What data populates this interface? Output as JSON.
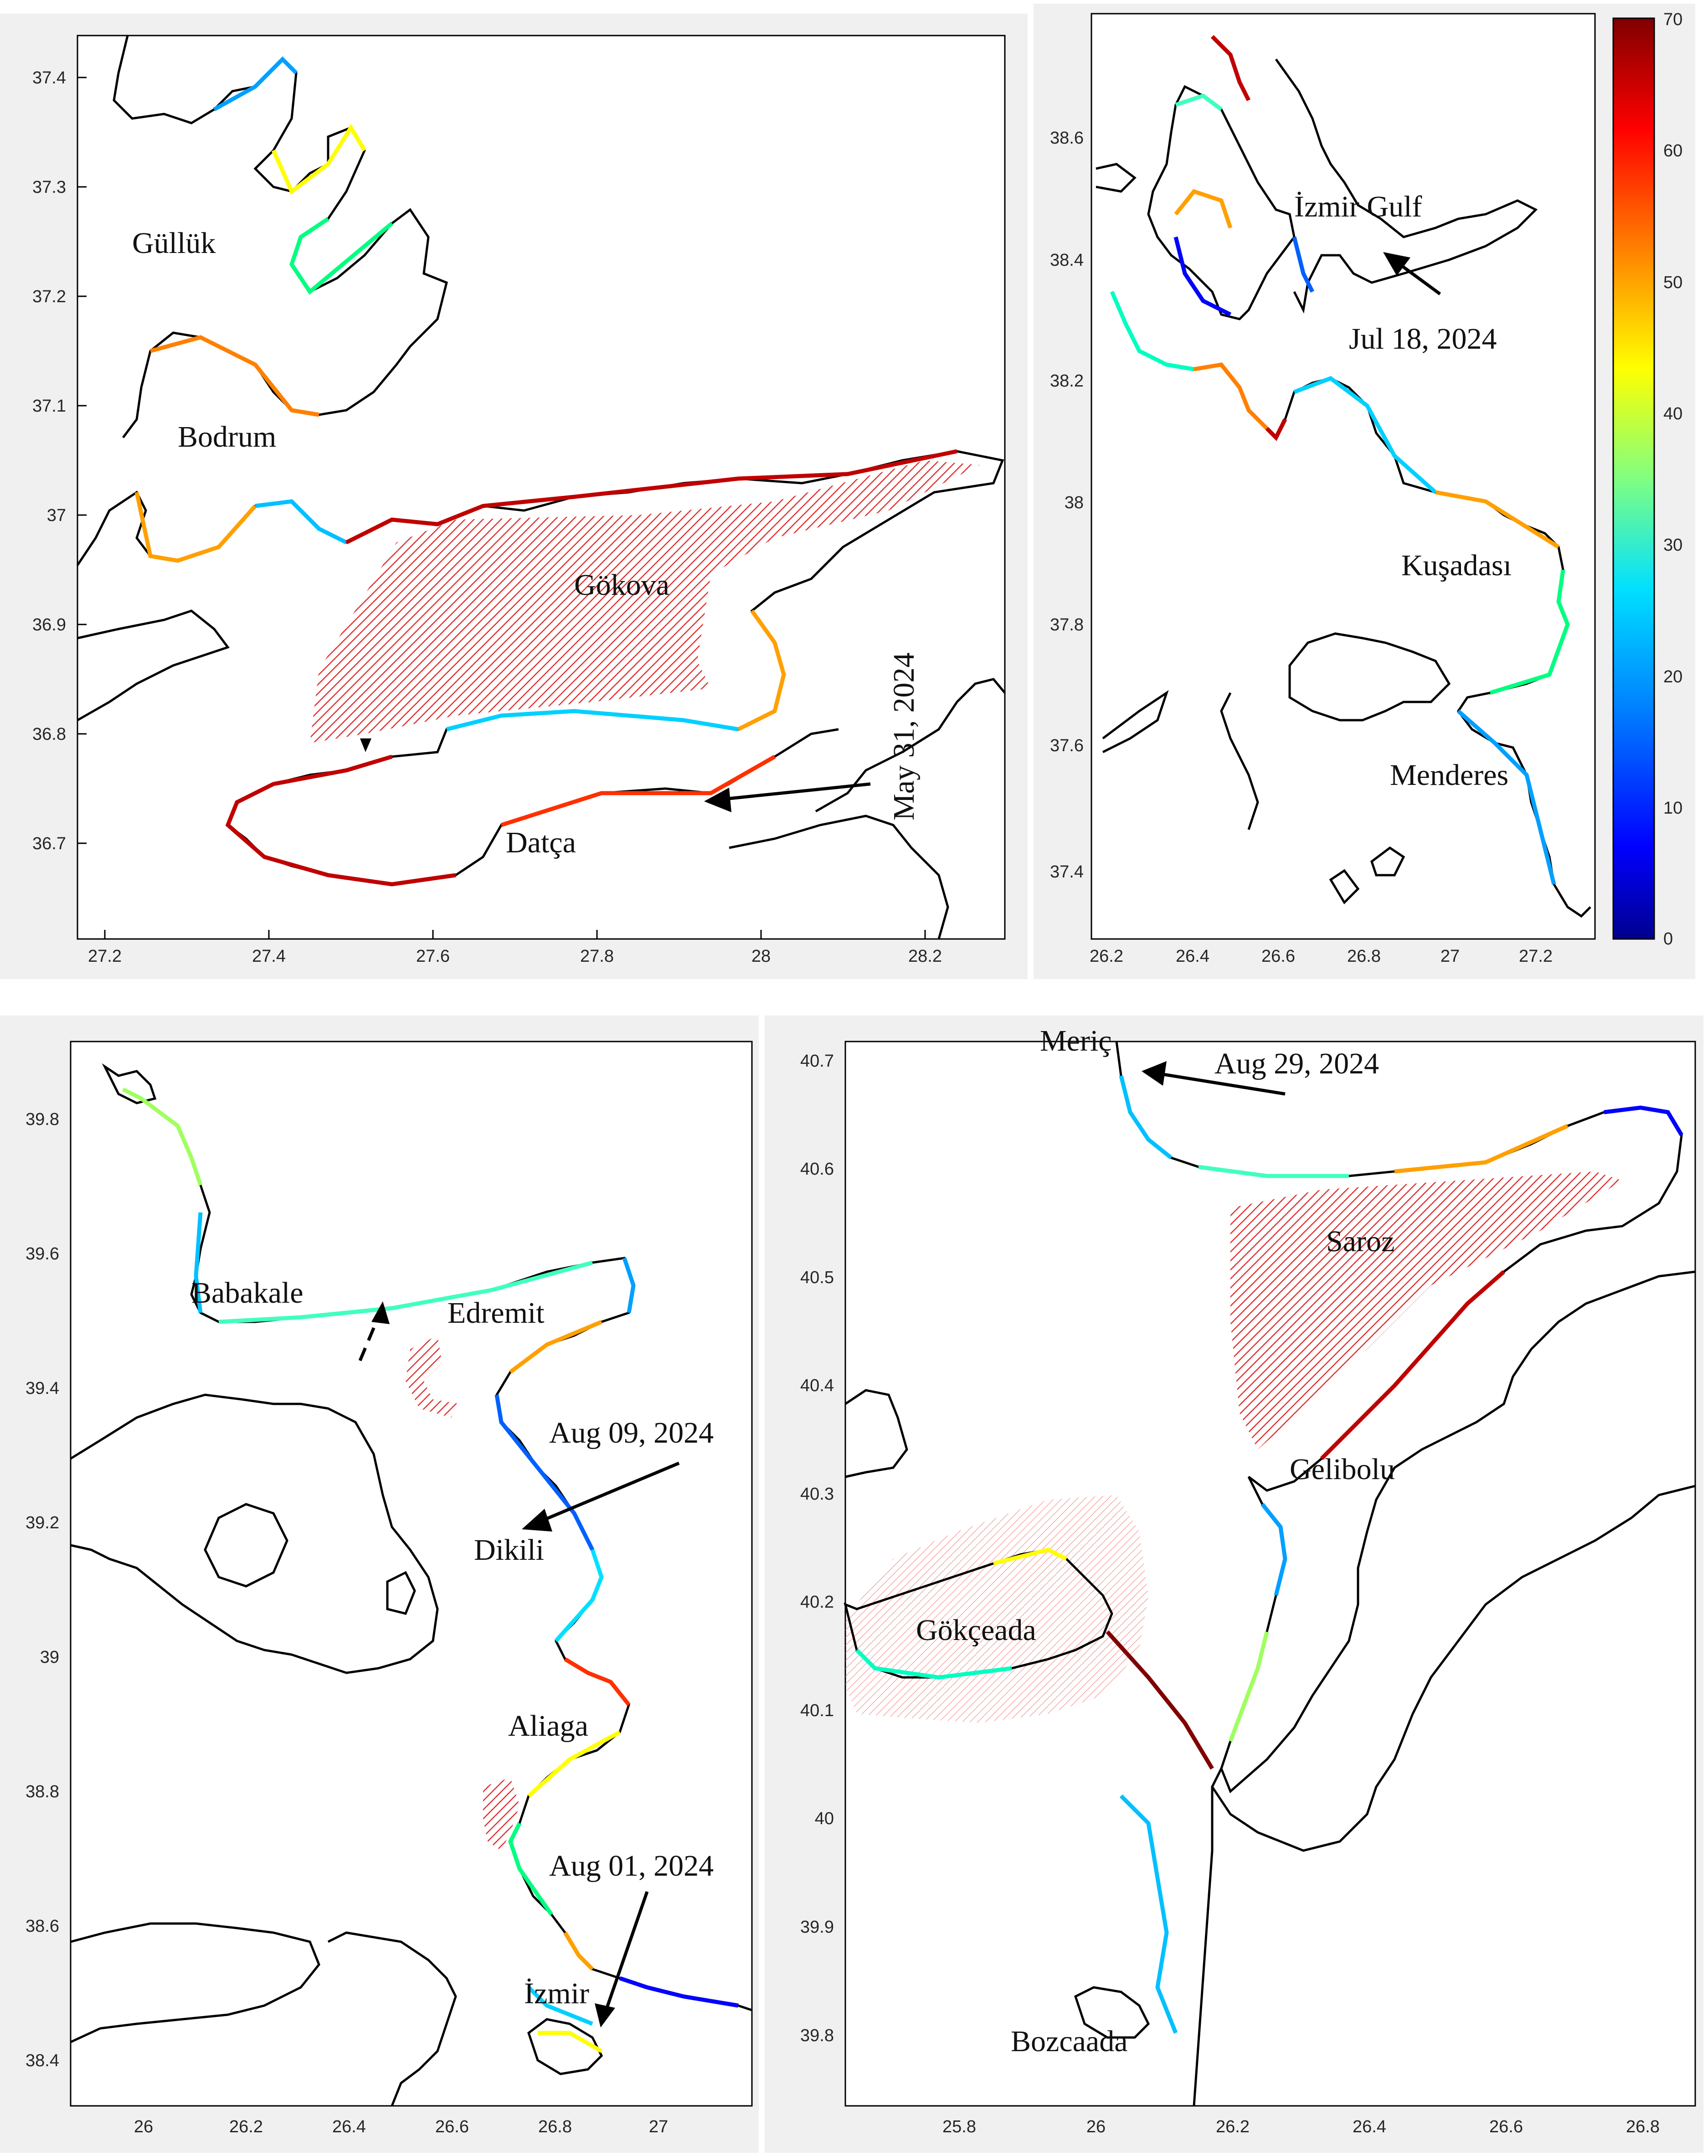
{
  "colors": {
    "background": "#f0f0f0",
    "coast": "#000000",
    "hatch": "#e03030",
    "colormap": [
      "#00008f",
      "#0000ff",
      "#0060ff",
      "#00d0ff",
      "#40ffc0",
      "#a0ff60",
      "#ffff00",
      "#ffa000",
      "#ff3000",
      "#c00000",
      "#800000"
    ]
  },
  "chart_data": [
    {
      "type": "map",
      "panel": "top-left",
      "xlim": [
        27.15,
        28.38
      ],
      "ylim": [
        36.6,
        37.45
      ],
      "x_ticks": [
        27.2,
        27.4,
        27.6,
        27.8,
        28,
        28.2
      ],
      "y_ticks": [
        36.7,
        36.8,
        36.9,
        37,
        37.1,
        37.2,
        37.3,
        37.4
      ],
      "x_tick_labels": [
        "27.2",
        "27.4",
        "27.6",
        "27.8",
        "28",
        "28.2"
      ],
      "y_tick_labels": [
        "36.7",
        "36.8",
        "36.9",
        "37",
        "37.1",
        "37.2",
        "37.3",
        "37.4"
      ],
      "places": [
        {
          "name": "Güllük",
          "lon": 27.33,
          "lat": 37.24
        },
        {
          "name": "Bodrum",
          "lon": 27.33,
          "lat": 37.06
        },
        {
          "name": "Gökova",
          "lon": 27.92,
          "lat": 36.88
        },
        {
          "name": "Datça",
          "lon": 27.85,
          "lat": 36.68
        }
      ],
      "annotations": [
        {
          "text": "May 31, 2024",
          "lon": 28.21,
          "lat": 36.84,
          "rotate": -90
        }
      ]
    },
    {
      "type": "map",
      "panel": "top-right",
      "xlim": [
        26.12,
        27.3
      ],
      "ylim": [
        37.28,
        38.75
      ],
      "x_ticks": [
        26.2,
        26.4,
        26.6,
        26.8,
        27,
        27.2
      ],
      "y_ticks": [
        37.4,
        37.6,
        37.8,
        38,
        38.2,
        38.4,
        38.6
      ],
      "x_tick_labels": [
        "26.2",
        "26.4",
        "26.6",
        "26.8",
        "27",
        "27.2"
      ],
      "y_tick_labels": [
        "37.4",
        "37.6",
        "37.8",
        "38",
        "38.2",
        "38.4",
        "38.6"
      ],
      "places": [
        {
          "name": "İzmir Gulf",
          "lon": 26.86,
          "lat": 38.47
        },
        {
          "name": "Kuşadası",
          "lon": 27.02,
          "lat": 37.97
        },
        {
          "name": "Menderes",
          "lon": 27.07,
          "lat": 37.5
        }
      ],
      "annotations": [
        {
          "text": "Jul 18, 2024",
          "lon": 26.88,
          "lat": 38.27
        }
      ],
      "colorbar": {
        "min": 0,
        "max": 70,
        "ticks": [
          0,
          10,
          20,
          30,
          40,
          50,
          60,
          70
        ],
        "tick_labels": [
          "0",
          "10",
          "20",
          "30",
          "40",
          "50",
          "60",
          "70"
        ]
      }
    },
    {
      "type": "map",
      "panel": "bottom-left",
      "xlim": [
        25.85,
        27.18
      ],
      "ylim": [
        38.35,
        39.93
      ],
      "x_ticks": [
        26,
        26.2,
        26.4,
        26.6,
        26.8,
        27
      ],
      "y_ticks": [
        38.4,
        38.6,
        38.8,
        39,
        39.2,
        39.4,
        39.6,
        39.8
      ],
      "x_tick_labels": [
        "26",
        "26.2",
        "26.4",
        "26.6",
        "26.8",
        "27"
      ],
      "y_tick_labels": [
        "38.4",
        "38.6",
        "38.8",
        "39",
        "39.2",
        "39.4",
        "39.6",
        "39.8"
      ],
      "places": [
        {
          "name": "Babakale",
          "lon": 26.07,
          "lat": 39.51
        },
        {
          "name": "Edremit",
          "lon": 26.6,
          "lat": 39.48
        },
        {
          "name": "Dikili",
          "lon": 26.74,
          "lat": 39.15
        },
        {
          "name": "Aliaga",
          "lon": 26.79,
          "lat": 38.87
        },
        {
          "name": "İzmir",
          "lon": 26.81,
          "lat": 38.5
        }
      ],
      "annotations": [
        {
          "text": "Aug 09, 2024",
          "lon": 26.91,
          "lat": 39.3
        },
        {
          "text": "Aug 01, 2024",
          "lon": 26.91,
          "lat": 38.72
        }
      ]
    },
    {
      "type": "map",
      "panel": "bottom-right",
      "xlim": [
        25.62,
        26.87
      ],
      "ylim": [
        39.73,
        40.73
      ],
      "x_ticks": [
        25.8,
        26,
        26.2,
        26.4,
        26.6,
        26.8
      ],
      "y_ticks": [
        39.8,
        39.9,
        40,
        40.1,
        40.2,
        40.3,
        40.4,
        40.5,
        40.6,
        40.7
      ],
      "x_tick_labels": [
        "25.8",
        "26",
        "26.2",
        "26.4",
        "26.6",
        "26.8"
      ],
      "y_tick_labels": [
        "39.8",
        "39.9",
        "40",
        "40.1",
        "40.2",
        "40.3",
        "40.4",
        "40.5",
        "40.6",
        "40.7"
      ],
      "places": [
        {
          "name": "Meriç",
          "lon": 25.98,
          "lat": 40.72
        },
        {
          "name": "Saroz",
          "lon": 26.35,
          "lat": 40.53
        },
        {
          "name": "Gelibolu",
          "lon": 26.33,
          "lat": 40.33
        },
        {
          "name": "Gökçeada",
          "lon": 25.79,
          "lat": 40.2
        },
        {
          "name": "Bozcaada",
          "lon": 25.94,
          "lat": 39.8
        }
      ],
      "annotations": [
        {
          "text": "Aug 29, 2024",
          "lon": 26.15,
          "lat": 40.71
        }
      ]
    }
  ]
}
